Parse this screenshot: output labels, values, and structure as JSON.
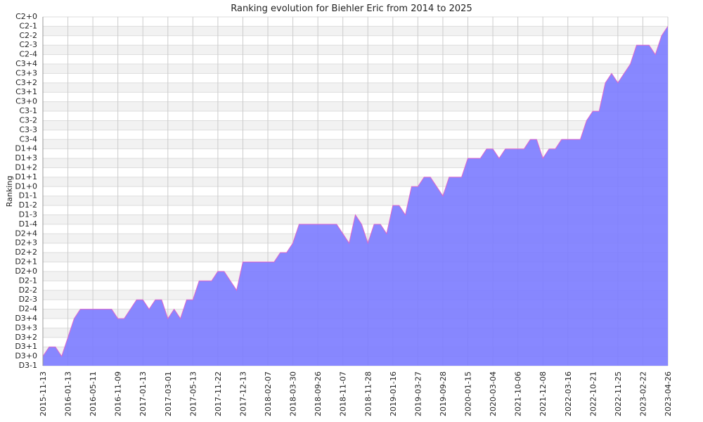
{
  "chart_data": {
    "type": "area",
    "title": "Ranking evolution for Biehler Eric from 2014 to 2025",
    "y_label": "Ranking",
    "categories": [
      "2015-11-13",
      null,
      null,
      null,
      "2016-01-13",
      null,
      null,
      null,
      "2016-05-11",
      null,
      null,
      null,
      "2016-11-09",
      null,
      null,
      null,
      "2017-01-13",
      null,
      null,
      null,
      "2017-03-01",
      null,
      null,
      null,
      "2017-05-13",
      null,
      null,
      null,
      "2017-11-22",
      null,
      null,
      null,
      "2017-12-13",
      null,
      null,
      null,
      "2018-02-07",
      null,
      null,
      null,
      "2018-03-30",
      null,
      null,
      null,
      "2018-09-26",
      null,
      null,
      null,
      "2018-11-07",
      null,
      null,
      null,
      "2018-11-28",
      null,
      null,
      null,
      "2019-01-16",
      null,
      null,
      null,
      "2019-03-27",
      null,
      null,
      null,
      "2019-09-28",
      null,
      null,
      null,
      "2020-01-15",
      null,
      null,
      null,
      "2020-03-04",
      null,
      null,
      null,
      "2021-10-06",
      null,
      null,
      null,
      "2021-12-08",
      null,
      null,
      null,
      "2022-03-16",
      null,
      null,
      null,
      "2022-10-21",
      null,
      null,
      null,
      "2022-11-25",
      null,
      null,
      null,
      "2023-02-22",
      null,
      null,
      null,
      "2023-04-26"
    ],
    "values": [
      1,
      2,
      2,
      1,
      3,
      5,
      6,
      6,
      6,
      6,
      6,
      6,
      5,
      5,
      6,
      7,
      7,
      6,
      7,
      7,
      5,
      6,
      5,
      7,
      7,
      9,
      9,
      9,
      10,
      10,
      9,
      8,
      11,
      11,
      11,
      11,
      11,
      11,
      12,
      12,
      13,
      15,
      15,
      15,
      15,
      15,
      15,
      15,
      14,
      13,
      16,
      15,
      13,
      15,
      15,
      14,
      17,
      17,
      16,
      19,
      19,
      20,
      20,
      19,
      18,
      20,
      20,
      20,
      22,
      22,
      22,
      23,
      23,
      22,
      23,
      23,
      23,
      23,
      24,
      24,
      22,
      23,
      23,
      24,
      24,
      24,
      24,
      26,
      27,
      27,
      30,
      31,
      30,
      31,
      32,
      34,
      34,
      34,
      33,
      35,
      36
    ],
    "color": "#7b7bff",
    "line_color": "#dd66cc",
    "ylim": [
      0,
      37
    ],
    "yticks": [
      {
        "value": 0,
        "label": "D3-1"
      },
      {
        "value": 1,
        "label": "D3+0"
      },
      {
        "value": 2,
        "label": "D3+1"
      },
      {
        "value": 3,
        "label": "D3+2"
      },
      {
        "value": 4,
        "label": "D3+3"
      },
      {
        "value": 5,
        "label": "D3+4"
      },
      {
        "value": 6,
        "label": "D2-4"
      },
      {
        "value": 7,
        "label": "D2-3"
      },
      {
        "value": 8,
        "label": "D2-2"
      },
      {
        "value": 9,
        "label": "D2-1"
      },
      {
        "value": 10,
        "label": "D2+0"
      },
      {
        "value": 11,
        "label": "D2+1"
      },
      {
        "value": 12,
        "label": "D2+2"
      },
      {
        "value": 13,
        "label": "D2+3"
      },
      {
        "value": 14,
        "label": "D2+4"
      },
      {
        "value": 15,
        "label": "D1-4"
      },
      {
        "value": 16,
        "label": "D1-3"
      },
      {
        "value": 17,
        "label": "D1-2"
      },
      {
        "value": 18,
        "label": "D1-1"
      },
      {
        "value": 19,
        "label": "D1+0"
      },
      {
        "value": 20,
        "label": "D1+1"
      },
      {
        "value": 21,
        "label": "D1+2"
      },
      {
        "value": 22,
        "label": "D1+3"
      },
      {
        "value": 23,
        "label": "D1+4"
      },
      {
        "value": 24,
        "label": "C3-4"
      },
      {
        "value": 25,
        "label": "C3-3"
      },
      {
        "value": 26,
        "label": "C3-2"
      },
      {
        "value": 27,
        "label": "C3-1"
      },
      {
        "value": 28,
        "label": "C3+0"
      },
      {
        "value": 29,
        "label": "C3+1"
      },
      {
        "value": 30,
        "label": "C3+2"
      },
      {
        "value": 31,
        "label": "C3+3"
      },
      {
        "value": 32,
        "label": "C3+4"
      },
      {
        "value": 33,
        "label": "C2-4"
      },
      {
        "value": 34,
        "label": "C2-3"
      },
      {
        "value": 35,
        "label": "C2-2"
      },
      {
        "value": 36,
        "label": "C2-1"
      },
      {
        "value": 37,
        "label": "C2+0"
      }
    ],
    "grid": true
  }
}
